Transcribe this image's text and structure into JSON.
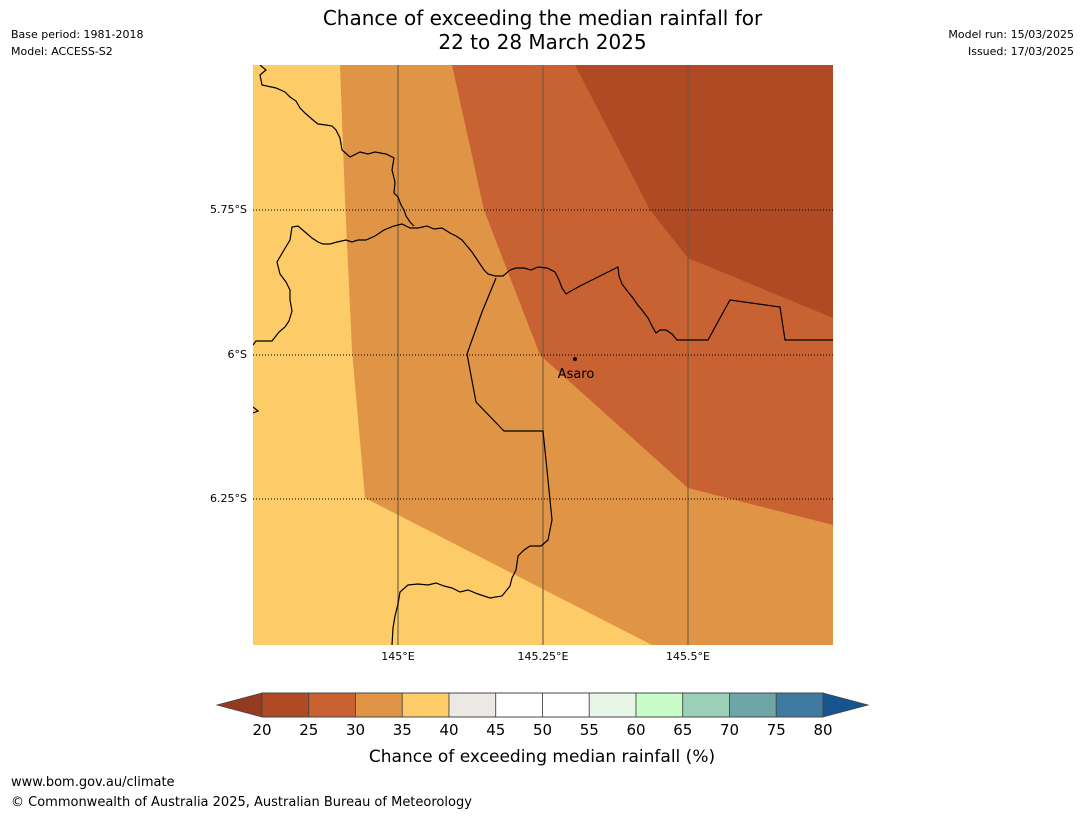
{
  "header": {
    "title_line1": "Chance of exceeding the median rainfall for",
    "title_line2": "22 to 28 March 2025",
    "base_period": "Base period: 1981-2018",
    "model": "Model: ACCESS-S2",
    "model_run": "Model run: 15/03/2025",
    "issued": "Issued: 17/03/2025"
  },
  "map": {
    "lat_labels": [
      "5.75°S",
      "6°S",
      "6.25°S"
    ],
    "lon_labels": [
      "145°E",
      "145.25°E",
      "145.5°E"
    ],
    "place_name": "Asaro",
    "zone_colors": {
      "20-25": "#b04a24",
      "25-30": "#c96232",
      "30-35": "#df9446",
      "35-40": "#fdcb67"
    }
  },
  "colorbar": {
    "ticks": [
      "20",
      "25",
      "30",
      "35",
      "40",
      "45",
      "50",
      "55",
      "60",
      "65",
      "70",
      "75",
      "80"
    ],
    "colors": [
      "#b04a24",
      "#c96232",
      "#df9446",
      "#fdcb67",
      "#ece8e4",
      "#ffffff",
      "#ffffff",
      "#e8f6e8",
      "#c8fcc8",
      "#9ccfb8",
      "#6ea5a6",
      "#3f7aa0"
    ],
    "low_extend_color": "#943a20",
    "high_extend_color": "#15548f",
    "label": "Chance of exceeding median rainfall (%)"
  },
  "footer": {
    "url": "www.bom.gov.au/climate",
    "copyright": "© Commonwealth of Australia 2025, Australian Bureau of Meteorology"
  }
}
